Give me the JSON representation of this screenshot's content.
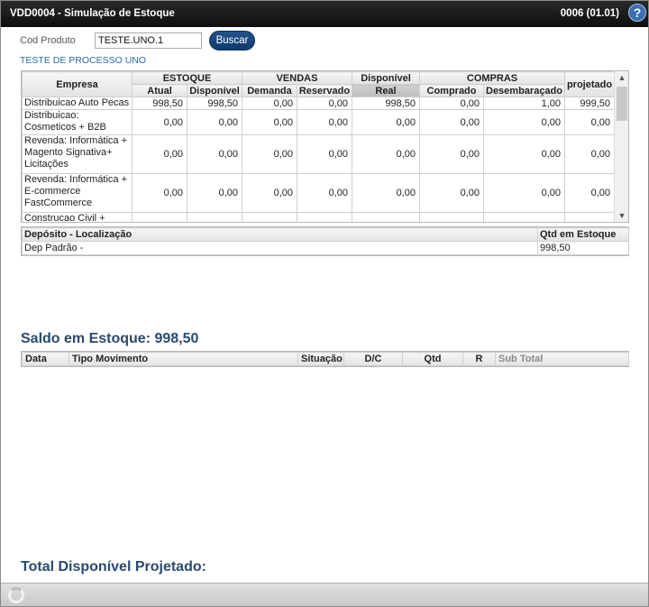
{
  "window": {
    "title": "VDD0004 - Simulação de Estoque",
    "code": "0006 (01.01)",
    "help_label": "?"
  },
  "search": {
    "label": "Cod Produto",
    "value": "TESTE.UNO.1",
    "button_label": "Buscar",
    "product_description": "TESTE DE PROCESSO UNO"
  },
  "stock_grid": {
    "headers": {
      "empresa": "Empresa",
      "estoque": "ESTOQUE",
      "vendas": "VENDAS",
      "disponivel": "Disponível",
      "compras": "COMPRAS",
      "projetado": "projetado",
      "atual": "Atual",
      "disponivel_sub": "Disponível",
      "demanda": "Demanda",
      "reservado": "Reservado",
      "real": "Real",
      "comprado": "Comprado",
      "desembaracado": "Desembaraçado"
    },
    "rows": [
      {
        "empresa": "Distribuicao Auto Pecas",
        "atual": "998,50",
        "disponivel": "998,50",
        "demanda": "0,00",
        "reservado": "0,00",
        "real": "998,50",
        "comprado": "0,00",
        "desembaracado": "1,00",
        "projetado": "999,50"
      },
      {
        "empresa": "Distribuicao: Cosmeticos + B2B",
        "atual": "0,00",
        "disponivel": "0,00",
        "demanda": "0,00",
        "reservado": "0,00",
        "real": "0,00",
        "comprado": "0,00",
        "desembaracado": "0,00",
        "projetado": "0,00"
      },
      {
        "empresa": "Revenda: Informática + Magento Signativa+ Licitações",
        "atual": "0,00",
        "disponivel": "0,00",
        "demanda": "0,00",
        "reservado": "0,00",
        "real": "0,00",
        "comprado": "0,00",
        "desembaracado": "0,00",
        "projetado": "0,00"
      },
      {
        "empresa": "Revenda: Informática + E-commerce FastCommerce",
        "atual": "0,00",
        "disponivel": "0,00",
        "demanda": "0,00",
        "reservado": "0,00",
        "real": "0,00",
        "comprado": "0,00",
        "desembaracado": "0,00",
        "projetado": "0,00"
      },
      {
        "empresa": "Construcao Civil +",
        "atual": "",
        "disponivel": "",
        "demanda": "",
        "reservado": "",
        "real": "",
        "comprado": "",
        "desembaracado": "",
        "projetado": ""
      }
    ]
  },
  "deposit_grid": {
    "headers": {
      "location": "Depósito - Localização",
      "qty": "Qtd em Estoque"
    },
    "rows": [
      {
        "location": "Dep Padrão -",
        "qty": "998,50"
      }
    ]
  },
  "saldo": {
    "text": "Saldo em Estoque: 998,50"
  },
  "movements_grid": {
    "headers": {
      "data": "Data",
      "tipo": "Tipo Movimento",
      "situacao": "Situação",
      "dc": "D/C",
      "qtd": "Qtd",
      "r": "R",
      "subtotal": "Sub Total"
    }
  },
  "total": {
    "text": "Total Disponível Projetado:"
  },
  "icons": {
    "help": "help-icon",
    "spinner": "loading-spinner-icon",
    "scroll_up": "chevron-up-icon",
    "scroll_down": "chevron-down-icon"
  },
  "colors": {
    "titlebar": "#0e0e0e",
    "button": "#1a4a80",
    "heading": "#2a4a6e",
    "link": "#2a6aa8"
  }
}
